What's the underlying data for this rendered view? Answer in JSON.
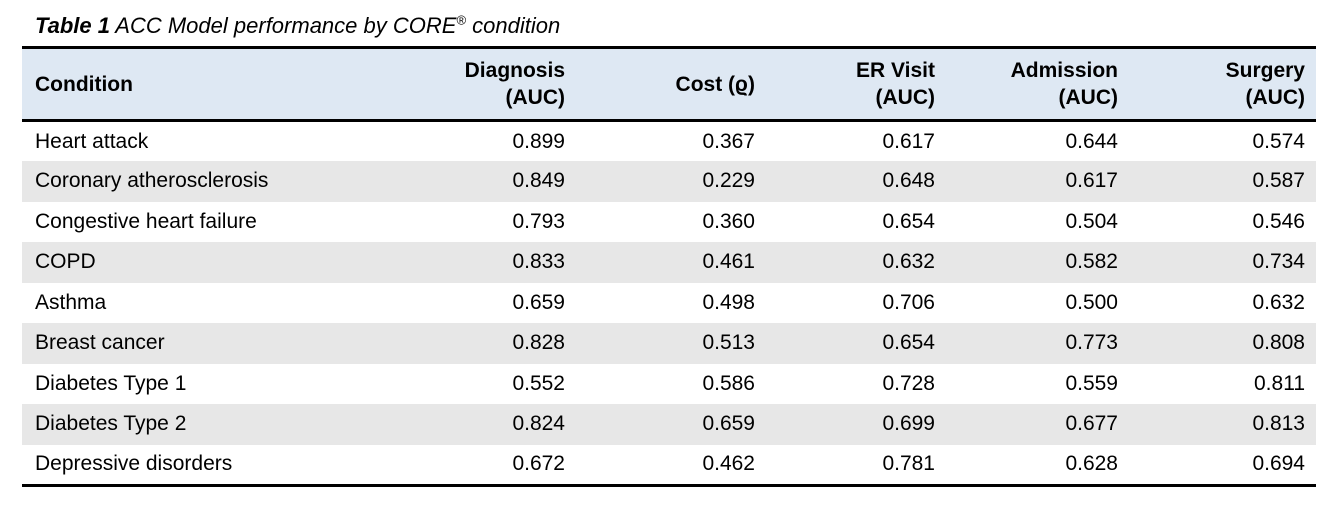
{
  "table": {
    "title": {
      "label": "Table 1",
      "text": "ACC Model performance by CORE",
      "registered": "®",
      "suffix": "condition"
    },
    "columns": [
      {
        "name": "Condition",
        "sub": ""
      },
      {
        "name": "Diagnosis",
        "sub": "(AUC)"
      },
      {
        "name": "Cost (ϱ)",
        "sub": ""
      },
      {
        "name": "ER Visit",
        "sub": "(AUC)"
      },
      {
        "name": "Admission",
        "sub": "(AUC)"
      },
      {
        "name": "Surgery",
        "sub": "(AUC)"
      }
    ],
    "rows": [
      {
        "condition": "Heart attack",
        "diagnosis": "0.899",
        "cost": "0.367",
        "er_visit": "0.617",
        "admission": "0.644",
        "surgery": "0.574"
      },
      {
        "condition": "Coronary atherosclerosis",
        "diagnosis": "0.849",
        "cost": "0.229",
        "er_visit": "0.648",
        "admission": "0.617",
        "surgery": "0.587"
      },
      {
        "condition": "Congestive heart failure",
        "diagnosis": "0.793",
        "cost": "0.360",
        "er_visit": "0.654",
        "admission": "0.504",
        "surgery": "0.546"
      },
      {
        "condition": "COPD",
        "diagnosis": "0.833",
        "cost": "0.461",
        "er_visit": "0.632",
        "admission": "0.582",
        "surgery": "0.734"
      },
      {
        "condition": "Asthma",
        "diagnosis": "0.659",
        "cost": "0.498",
        "er_visit": "0.706",
        "admission": "0.500",
        "surgery": "0.632"
      },
      {
        "condition": "Breast cancer",
        "diagnosis": "0.828",
        "cost": "0.513",
        "er_visit": "0.654",
        "admission": "0.773",
        "surgery": "0.808"
      },
      {
        "condition": "Diabetes Type 1",
        "diagnosis": "0.552",
        "cost": "0.586",
        "er_visit": "0.728",
        "admission": "0.559",
        "surgery": "0.811"
      },
      {
        "condition": "Diabetes Type 2",
        "diagnosis": "0.824",
        "cost": "0.659",
        "er_visit": "0.699",
        "admission": "0.677",
        "surgery": "0.813"
      },
      {
        "condition": "Depressive disorders",
        "diagnosis": "0.672",
        "cost": "0.462",
        "er_visit": "0.781",
        "admission": "0.628",
        "surgery": "0.694"
      }
    ]
  },
  "colors": {
    "header_bg": "#DEE8F3",
    "stripe_bg": "#E7E7E7",
    "border": "#000000"
  }
}
